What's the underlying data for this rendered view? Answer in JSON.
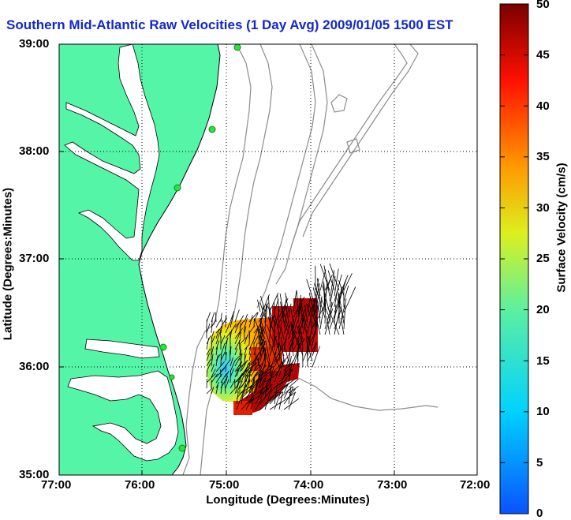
{
  "title": "Southern Mid-Atlantic Raw Velocities (1 Day Avg) 2009/01/05 1500 EST",
  "axes": {
    "ylabel": "Latitude (Degrees:Minutes)",
    "xlabel": "Longitude (Degrees:Minutes)",
    "yticks": [
      "39:00",
      "38:00",
      "37:00",
      "36:00",
      "35:00"
    ],
    "xticks": [
      "77:00",
      "76:00",
      "75:00",
      "74:00",
      "73:00",
      "72:00"
    ]
  },
  "colorbar": {
    "label": "Surface Velocity (cm/s)",
    "ticks": [
      "0",
      "5",
      "10",
      "15",
      "20",
      "25",
      "30",
      "35",
      "40",
      "45",
      "50"
    ],
    "range": [
      0,
      50
    ]
  },
  "colors": {
    "land": "#55f5a8",
    "coastline": "#000000",
    "bathymetry": "#8c8c8c",
    "stations": "#2ee03a",
    "title": "#1428c8",
    "vectors": "#000000"
  },
  "map": {
    "lon_range": [
      "77:00",
      "72:00"
    ],
    "lat_range": [
      "35:00",
      "39:00"
    ],
    "grid": true,
    "stations": 6,
    "vector_field": "surface current velocity vectors colored by speed"
  }
}
